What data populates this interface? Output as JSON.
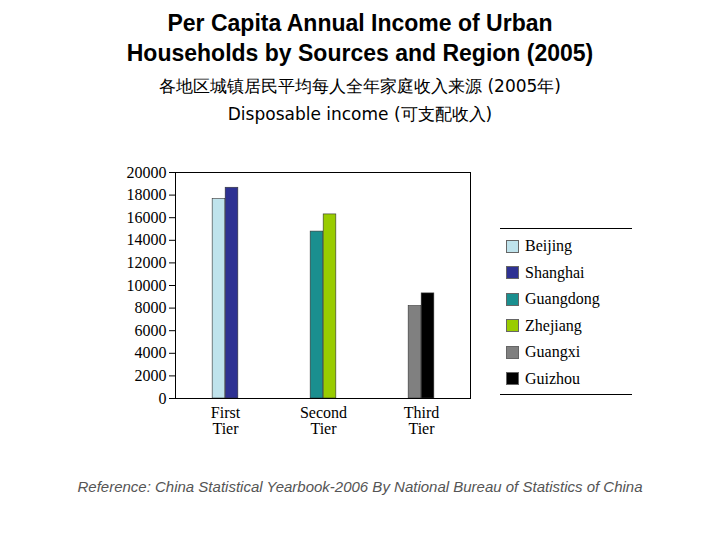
{
  "chart_data": {
    "type": "bar",
    "title": "Per Capita Annual Income of Urban Households by Sources and Region (2005)",
    "subtitle": [
      "各地区城镇居民平均每人全年家庭收入来源 (2005年)",
      "Disposable income (可支配收入)"
    ],
    "source": "Reference: China Statistical Yearbook-2006 By National Bureau of Statistics of China",
    "categories": [
      "First Tier",
      "Second Tier",
      "Third Tier"
    ],
    "series": [
      {
        "name": "Beijing",
        "color": "#bfe3ec",
        "values": [
          17650,
          null,
          null
        ]
      },
      {
        "name": "Shanghai",
        "color": "#2e3192",
        "values": [
          18650,
          null,
          null
        ]
      },
      {
        "name": "Guangdong",
        "color": "#1a8f8f",
        "values": [
          null,
          14770,
          null
        ]
      },
      {
        "name": "Zhejiang",
        "color": "#99cc00",
        "values": [
          null,
          16290,
          null
        ]
      },
      {
        "name": "Guangxi",
        "color": "#808080",
        "values": [
          null,
          null,
          8180
        ]
      },
      {
        "name": "Guizhou",
        "color": "#000000",
        "values": [
          null,
          null,
          9300
        ]
      }
    ],
    "ylim": [
      0,
      20000
    ],
    "yticks": [
      0,
      2000,
      4000,
      6000,
      8000,
      10000,
      12000,
      14000,
      16000,
      18000,
      20000
    ],
    "grid": false,
    "legend": "right"
  }
}
